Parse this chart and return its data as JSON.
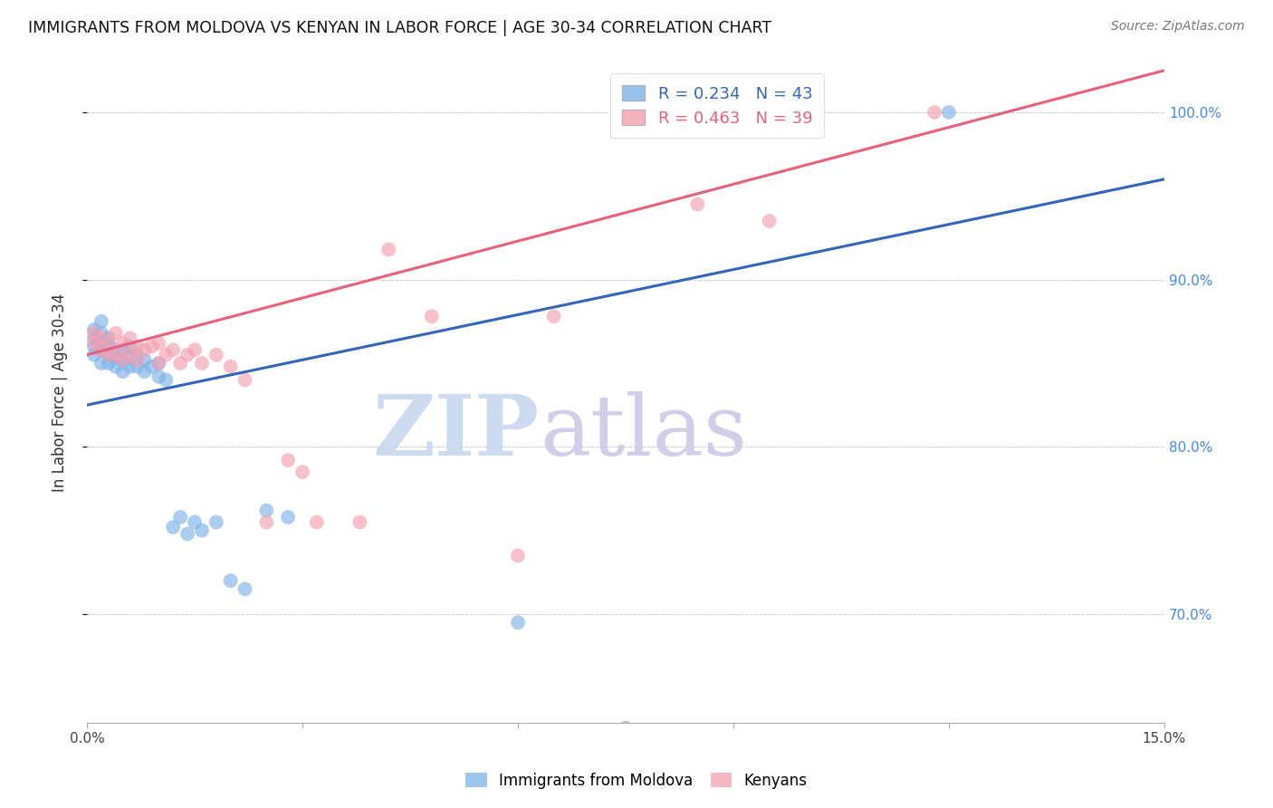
{
  "title": "IMMIGRANTS FROM MOLDOVA VS KENYAN IN LABOR FORCE | AGE 30-34 CORRELATION CHART",
  "source": "Source: ZipAtlas.com",
  "ylabel": "In Labor Force | Age 30-34",
  "xlim": [
    0.0,
    0.15
  ],
  "ylim": [
    0.635,
    1.03
  ],
  "blue_R": 0.234,
  "blue_N": 43,
  "pink_R": 0.463,
  "pink_N": 39,
  "blue_color": "#7EB3E8",
  "pink_color": "#F4A0B0",
  "blue_line_color": "#3366BB",
  "pink_line_color": "#E8607A",
  "watermark_zip": "ZIP",
  "watermark_atlas": "atlas",
  "legend_label_blue": "Immigrants from Moldova",
  "legend_label_pink": "Kenyans",
  "yticks": [
    0.7,
    0.8,
    0.9,
    1.0
  ],
  "ytick_labels": [
    "70.0%",
    "80.0%",
    "90.0%",
    "100.0%"
  ],
  "blue_scatter_x": [
    0.001,
    0.001,
    0.001,
    0.001,
    0.002,
    0.002,
    0.002,
    0.002,
    0.002,
    0.003,
    0.003,
    0.003,
    0.003,
    0.004,
    0.004,
    0.004,
    0.005,
    0.005,
    0.005,
    0.006,
    0.006,
    0.006,
    0.007,
    0.007,
    0.008,
    0.008,
    0.009,
    0.01,
    0.01,
    0.011,
    0.012,
    0.013,
    0.014,
    0.015,
    0.016,
    0.018,
    0.02,
    0.022,
    0.025,
    0.028,
    0.06,
    0.075,
    0.12
  ],
  "blue_scatter_y": [
    0.855,
    0.86,
    0.865,
    0.87,
    0.85,
    0.858,
    0.862,
    0.868,
    0.875,
    0.85,
    0.855,
    0.86,
    0.865,
    0.848,
    0.853,
    0.858,
    0.845,
    0.852,
    0.858,
    0.848,
    0.853,
    0.86,
    0.848,
    0.855,
    0.845,
    0.852,
    0.848,
    0.842,
    0.85,
    0.84,
    0.752,
    0.758,
    0.748,
    0.755,
    0.75,
    0.755,
    0.72,
    0.715,
    0.762,
    0.758,
    0.695,
    0.632,
    1.0
  ],
  "pink_scatter_x": [
    0.001,
    0.001,
    0.002,
    0.002,
    0.003,
    0.003,
    0.004,
    0.004,
    0.005,
    0.005,
    0.006,
    0.006,
    0.007,
    0.007,
    0.008,
    0.009,
    0.01,
    0.01,
    0.011,
    0.012,
    0.013,
    0.014,
    0.015,
    0.016,
    0.018,
    0.02,
    0.022,
    0.025,
    0.028,
    0.03,
    0.032,
    0.038,
    0.042,
    0.048,
    0.06,
    0.065,
    0.085,
    0.095,
    0.118
  ],
  "pink_scatter_y": [
    0.862,
    0.868,
    0.858,
    0.865,
    0.855,
    0.862,
    0.855,
    0.868,
    0.852,
    0.862,
    0.855,
    0.865,
    0.852,
    0.86,
    0.858,
    0.86,
    0.85,
    0.862,
    0.855,
    0.858,
    0.85,
    0.855,
    0.858,
    0.85,
    0.855,
    0.848,
    0.84,
    0.755,
    0.792,
    0.785,
    0.755,
    0.755,
    0.918,
    0.878,
    0.735,
    0.878,
    0.945,
    0.935,
    1.0
  ]
}
